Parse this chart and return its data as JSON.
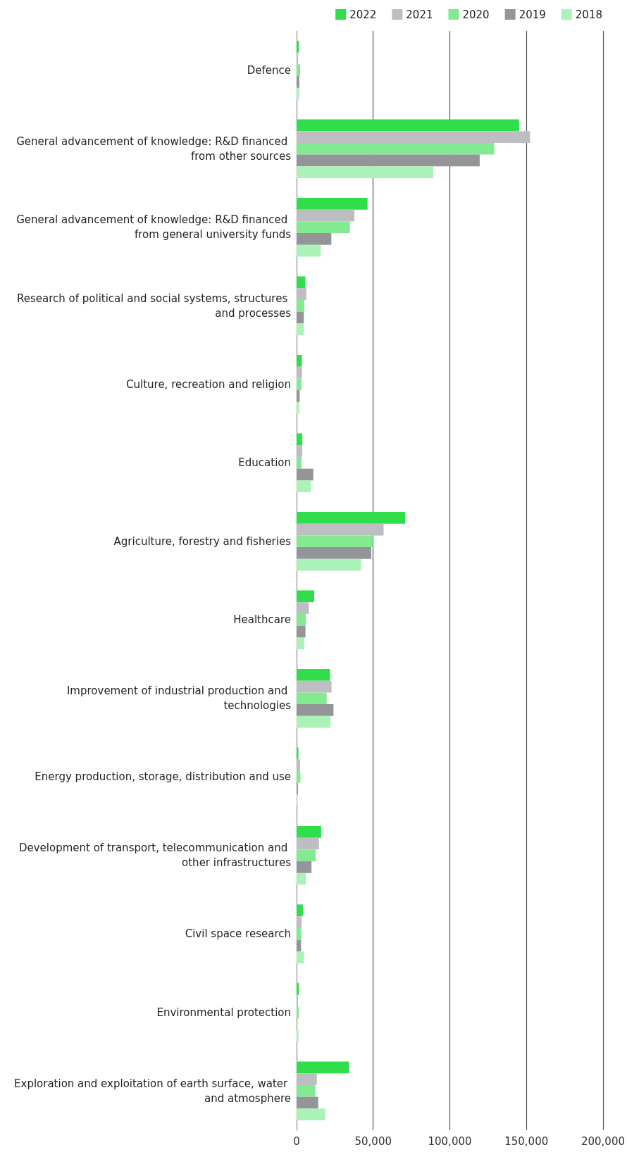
{
  "chart_data": {
    "type": "bar",
    "orientation": "horizontal",
    "categories": [
      "Defence",
      "General advancement of knowledge: R&D financed from other sources",
      "General advancement of knowledge: R&D financed from general university funds",
      "Research of political and social systems, structures and processes",
      "Culture, recreation and religion",
      "Education",
      "Agriculture, forestry and fisheries",
      "Healthcare",
      "Improvement of industrial production and technologies",
      "Energy production, storage, distribution and use",
      "Development of transport, telecommunication and other infrastructures",
      "Civil space research",
      "Environmental protection",
      "Exploration and exploitation of earth surface, water and atmosphere"
    ],
    "series": [
      {
        "name": "2022",
        "color": "#30dd4a",
        "values": [
          1500,
          145200,
          46300,
          5700,
          3400,
          3700,
          70800,
          11500,
          21800,
          1200,
          16100,
          4100,
          1500,
          34200
        ]
      },
      {
        "name": "2021",
        "color": "#bdbec2",
        "values": [
          1000,
          152400,
          37700,
          6400,
          3500,
          3700,
          56800,
          8000,
          22800,
          2300,
          14600,
          3200,
          900,
          13200
        ]
      },
      {
        "name": "2020",
        "color": "#83ea92",
        "values": [
          2300,
          129000,
          34800,
          5100,
          3200,
          3200,
          49900,
          6000,
          19600,
          2500,
          12400,
          3100,
          1500,
          12300
        ]
      },
      {
        "name": "2019",
        "color": "#939598",
        "values": [
          1800,
          119500,
          22700,
          4700,
          2000,
          10900,
          48700,
          5800,
          24100,
          900,
          9700,
          2900,
          null,
          14100
        ]
      },
      {
        "name": "2018",
        "color": "#abf2b8",
        "values": [
          1700,
          89200,
          15800,
          4700,
          1700,
          9300,
          42100,
          5100,
          22200,
          800,
          6000,
          4900,
          1200,
          18800
        ]
      }
    ],
    "xlim": [
      0,
      200000
    ],
    "xticks": [
      0,
      {
        "value": 50000,
        "label": "50,000"
      },
      {
        "value": 100000,
        "label": "100,000"
      },
      {
        "value": 150000,
        "label": "150,000"
      },
      {
        "value": 200000,
        "label": "200,000"
      }
    ],
    "grid": "x",
    "legend": "top right"
  }
}
